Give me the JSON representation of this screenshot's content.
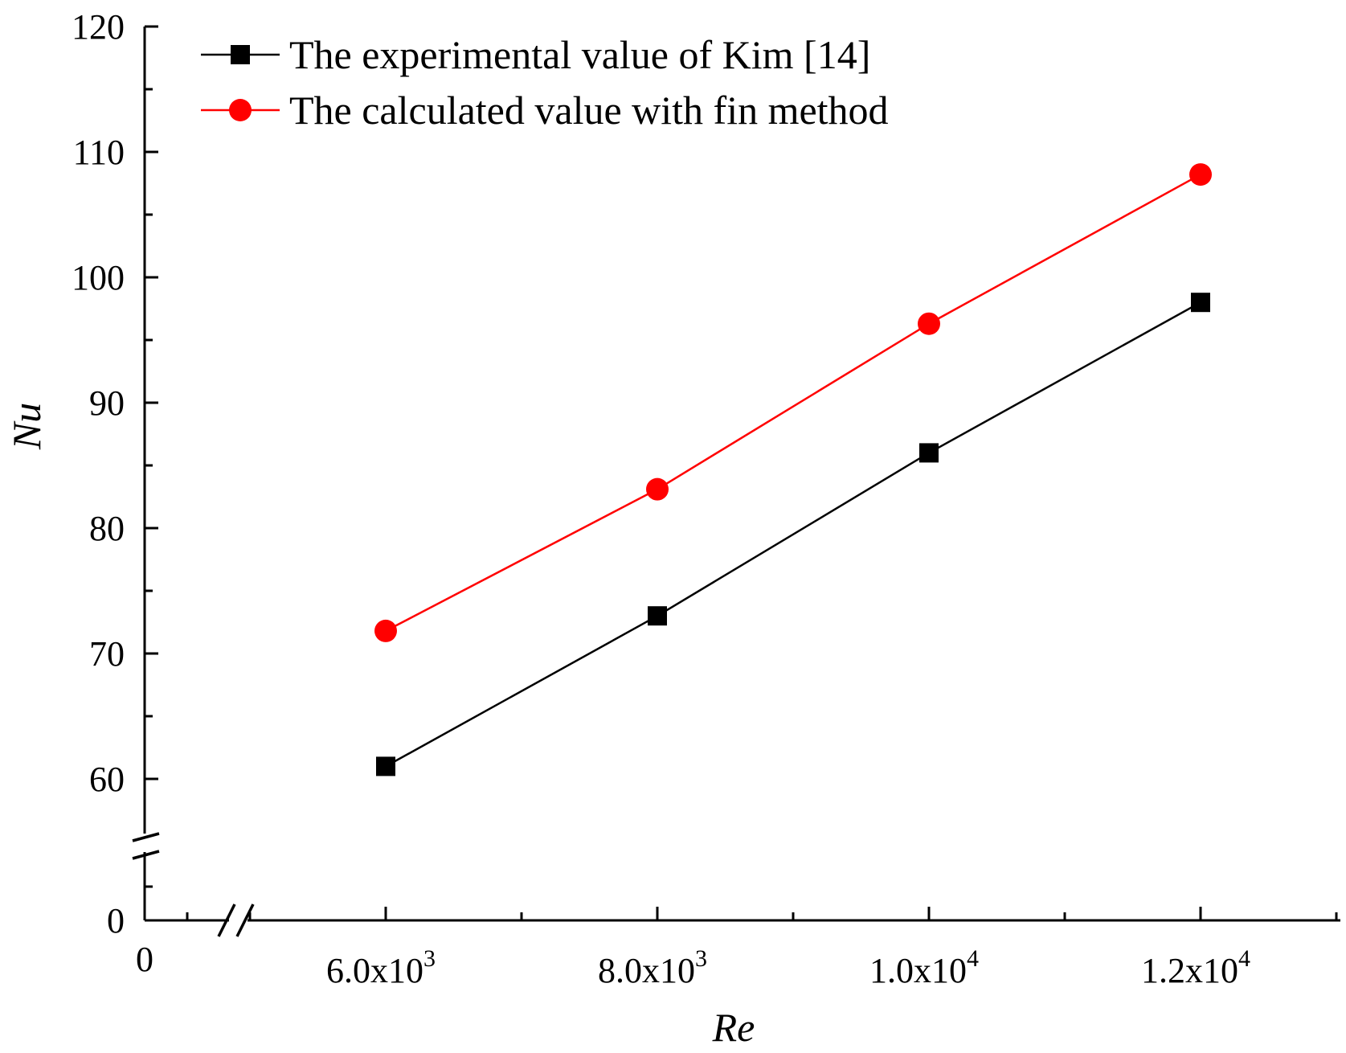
{
  "chart_data": {
    "type": "line",
    "title": "",
    "xlabel": "Re",
    "ylabel": "Nu",
    "xlim": [
      5000,
      13000
    ],
    "ylim": [
      55,
      120
    ],
    "axis_break": {
      "y_lower_label": "0",
      "x_lower_label": "0"
    },
    "x_ticks": [
      {
        "value": 6000,
        "mantissa": "6.0x10",
        "exponent": "3"
      },
      {
        "value": 8000,
        "mantissa": "8.0x10",
        "exponent": "3"
      },
      {
        "value": 10000,
        "mantissa": "1.0x10",
        "exponent": "4"
      },
      {
        "value": 12000,
        "mantissa": "1.2x10",
        "exponent": "4"
      }
    ],
    "x_minor_ticks": [
      5000,
      7000,
      9000,
      11000,
      13000
    ],
    "y_ticks": [
      60,
      70,
      80,
      90,
      100,
      110,
      120
    ],
    "y_tick_labels": [
      "60",
      "70",
      "80",
      "90",
      "100",
      "110",
      "120"
    ],
    "y_minor_ticks": [
      65,
      75,
      85,
      95,
      105,
      115
    ],
    "legend_position": "top-left",
    "series": [
      {
        "name": "The experimental value of Kim [14]",
        "marker": "square",
        "color": "#000000",
        "x": [
          6000,
          8000,
          10000,
          12000
        ],
        "values": [
          61,
          73,
          86,
          98
        ]
      },
      {
        "name": "The calculated value with fin method",
        "marker": "circle",
        "color": "#ff0000",
        "x": [
          6000,
          8000,
          10000,
          12000
        ],
        "values": [
          71.8,
          83.1,
          96.3,
          108.2
        ]
      }
    ]
  }
}
